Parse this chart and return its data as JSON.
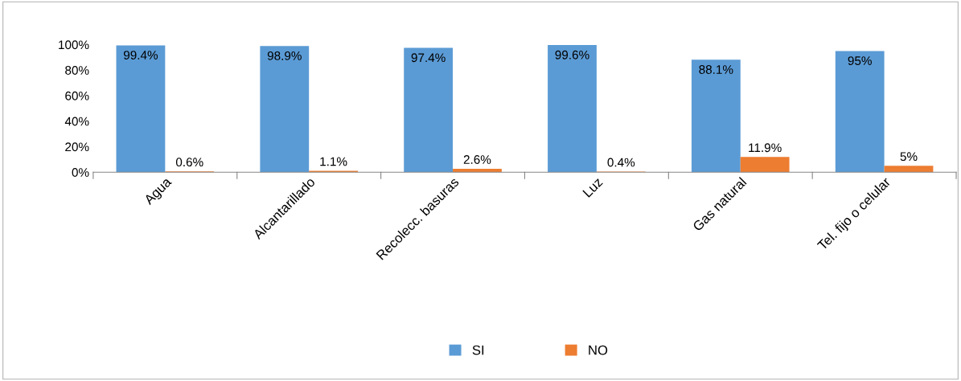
{
  "chart_data": {
    "type": "bar",
    "categories": [
      "Agua",
      "Alcantarillado",
      "Recolecc. basuras",
      "Luz",
      "Gas natural",
      "Tel. fijo o celular"
    ],
    "series": [
      {
        "name": "SI",
        "color": "#5b9bd5",
        "values": [
          99.4,
          98.9,
          97.4,
          99.6,
          88.1,
          95
        ],
        "value_labels": [
          "99.4%",
          "98.9%",
          "97.4%",
          "99.6%",
          "88.1%",
          "95%"
        ]
      },
      {
        "name": "NO",
        "color": "#ed7d31",
        "values": [
          0.6,
          1.1,
          2.6,
          0.4,
          11.9,
          5
        ],
        "value_labels": [
          "0.6%",
          "1.1%",
          "2.6%",
          "0.4%",
          "11.9%",
          "5%"
        ]
      }
    ],
    "ylim": [
      0,
      100
    ],
    "yticks": [
      {
        "value": 0,
        "label": "0%"
      },
      {
        "value": 20,
        "label": "20%"
      },
      {
        "value": 40,
        "label": "40%"
      },
      {
        "value": 60,
        "label": "60%"
      },
      {
        "value": 80,
        "label": "80%"
      },
      {
        "value": 100,
        "label": "100%"
      }
    ],
    "grid": false,
    "legend": "bottom"
  }
}
